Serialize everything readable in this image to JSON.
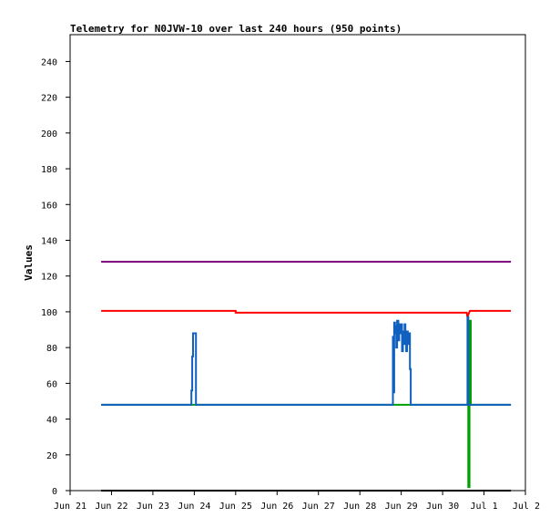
{
  "chart_data": {
    "type": "line",
    "title": "Telemetry for N0JVW-10 over last 240 hours (950 points)",
    "xlabel": "",
    "ylabel": "Values",
    "x_unit": "days",
    "xlim": [
      0,
      11
    ],
    "ylim": [
      0,
      255
    ],
    "x_ticks": [
      {
        "x": 0,
        "label": "Jun 21"
      },
      {
        "x": 1,
        "label": "Jun 22"
      },
      {
        "x": 2,
        "label": "Jun 23"
      },
      {
        "x": 3,
        "label": "Jun 24"
      },
      {
        "x": 4,
        "label": "Jun 25"
      },
      {
        "x": 5,
        "label": "Jun 26"
      },
      {
        "x": 6,
        "label": "Jun 27"
      },
      {
        "x": 7,
        "label": "Jun 28"
      },
      {
        "x": 8,
        "label": "Jun 29"
      },
      {
        "x": 9,
        "label": "Jun 30"
      },
      {
        "x": 10,
        "label": "Jul 1"
      },
      {
        "x": 11,
        "label": "Jul 2"
      }
    ],
    "y_ticks": [
      0,
      20,
      40,
      60,
      80,
      100,
      120,
      140,
      160,
      180,
      200,
      220,
      240
    ],
    "grid": false,
    "series": [
      {
        "color": "#000000",
        "points": [
          [
            0.75,
            0
          ],
          [
            10.65,
            0
          ]
        ]
      },
      {
        "color": "#800080",
        "points": [
          [
            0.75,
            128
          ],
          [
            10.65,
            128
          ]
        ]
      },
      {
        "color": "#ff0000",
        "points": [
          [
            0.75,
            100.5
          ],
          [
            4.0,
            100.5
          ],
          [
            4.0,
            99.5
          ],
          [
            9.58,
            99.5
          ],
          [
            9.6,
            97
          ],
          [
            9.63,
            99
          ],
          [
            9.66,
            100.5
          ],
          [
            10.65,
            100.5
          ]
        ]
      },
      {
        "color": "#00a000",
        "points": [
          [
            0.75,
            48
          ],
          [
            7.82,
            48
          ],
          [
            7.85,
            48
          ],
          [
            8.27,
            48
          ],
          [
            9.62,
            48
          ],
          [
            9.62,
            2
          ],
          [
            9.65,
            2
          ],
          [
            9.65,
            95
          ],
          [
            9.68,
            95
          ],
          [
            9.68,
            48
          ],
          [
            10.65,
            48
          ]
        ]
      },
      {
        "color": "#1060c0",
        "points": [
          [
            0.75,
            48
          ],
          [
            2.93,
            48
          ],
          [
            2.93,
            56
          ],
          [
            2.95,
            56
          ],
          [
            2.95,
            75
          ],
          [
            2.97,
            75
          ],
          [
            2.97,
            88
          ],
          [
            3.04,
            88
          ],
          [
            3.04,
            48
          ],
          [
            7.8,
            48
          ],
          [
            7.8,
            86
          ],
          [
            7.82,
            86
          ],
          [
            7.82,
            55
          ],
          [
            7.83,
            55
          ],
          [
            7.83,
            94
          ],
          [
            7.85,
            94
          ],
          [
            7.85,
            88
          ],
          [
            7.87,
            88
          ],
          [
            7.87,
            92
          ],
          [
            7.88,
            92
          ],
          [
            7.88,
            80
          ],
          [
            7.9,
            80
          ],
          [
            7.9,
            95
          ],
          [
            7.93,
            95
          ],
          [
            7.93,
            84
          ],
          [
            7.95,
            84
          ],
          [
            7.95,
            93
          ],
          [
            7.97,
            93
          ],
          [
            7.97,
            88
          ],
          [
            7.99,
            88
          ],
          [
            7.99,
            93
          ],
          [
            8.02,
            93
          ],
          [
            8.02,
            78
          ],
          [
            8.04,
            78
          ],
          [
            8.04,
            89
          ],
          [
            8.06,
            89
          ],
          [
            8.06,
            82
          ],
          [
            8.08,
            82
          ],
          [
            8.08,
            93
          ],
          [
            8.1,
            93
          ],
          [
            8.1,
            86
          ],
          [
            8.12,
            86
          ],
          [
            8.12,
            78
          ],
          [
            8.14,
            78
          ],
          [
            8.14,
            89
          ],
          [
            8.16,
            89
          ],
          [
            8.16,
            82
          ],
          [
            8.18,
            82
          ],
          [
            8.18,
            88
          ],
          [
            8.21,
            88
          ],
          [
            8.21,
            68
          ],
          [
            8.23,
            68
          ],
          [
            8.23,
            48
          ],
          [
            9.6,
            48
          ],
          [
            9.6,
            97
          ],
          [
            9.62,
            97
          ],
          [
            9.62,
            48
          ],
          [
            10.65,
            48
          ]
        ]
      }
    ]
  }
}
